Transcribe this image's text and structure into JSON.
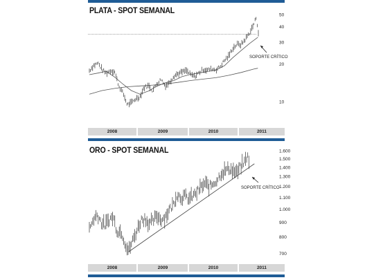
{
  "chart_data": [
    {
      "type": "line",
      "title": "PLATA - SPOT SEMANAL",
      "scale": "log",
      "ylim": [
        7,
        55
      ],
      "yticks": [
        10,
        20,
        30,
        40,
        50
      ],
      "x_categories": [
        "2008",
        "2009",
        "2010",
        "2011"
      ],
      "annotation": "SOPORTE CRÍTICO",
      "reference_level": 35,
      "grid": false,
      "series": [
        {
          "values": [
            [
              2008.0,
              17.8
            ],
            [
              2008.08,
              19.5
            ],
            [
              2008.17,
              20.5
            ],
            [
              2008.25,
              18.2
            ],
            [
              2008.33,
              17.0
            ],
            [
              2008.42,
              17.8
            ],
            [
              2008.5,
              17.5
            ],
            [
              2008.58,
              13.5
            ],
            [
              2008.67,
              11.6
            ],
            [
              2008.75,
              9.5
            ],
            [
              2008.83,
              9.8
            ],
            [
              2008.92,
              10.6
            ],
            [
              2009.0,
              11.0
            ],
            [
              2009.08,
              13.0
            ],
            [
              2009.17,
              13.5
            ],
            [
              2009.25,
              12.3
            ],
            [
              2009.33,
              14.0
            ],
            [
              2009.42,
              15.2
            ],
            [
              2009.5,
              13.4
            ],
            [
              2009.58,
              14.2
            ],
            [
              2009.67,
              16.2
            ],
            [
              2009.75,
              16.8
            ],
            [
              2009.83,
              17.3
            ],
            [
              2009.92,
              17.8
            ],
            [
              2010.0,
              16.5
            ],
            [
              2010.08,
              16.0
            ],
            [
              2010.17,
              17.2
            ],
            [
              2010.25,
              18.2
            ],
            [
              2010.33,
              18.0
            ],
            [
              2010.42,
              18.4
            ],
            [
              2010.5,
              18.1
            ],
            [
              2010.58,
              19.1
            ],
            [
              2010.67,
              21.5
            ],
            [
              2010.75,
              23.2
            ],
            [
              2010.83,
              26.8
            ],
            [
              2010.92,
              29.0
            ],
            [
              2011.0,
              28.8
            ],
            [
              2011.08,
              31.8
            ],
            [
              2011.17,
              36.0
            ],
            [
              2011.25,
              42.0
            ],
            [
              2011.3,
              48.0
            ],
            [
              2011.34,
              36.0
            ]
          ]
        },
        {
          "values": [
            [
              2008.0,
              16.5
            ],
            [
              2008.17,
              17.0
            ],
            [
              2008.33,
              17.6
            ],
            [
              2008.5,
              15.8
            ],
            [
              2008.67,
              13.8
            ],
            [
              2008.83,
              12.3
            ],
            [
              2009.0,
              11.5
            ],
            [
              2009.17,
              12.2
            ],
            [
              2009.33,
              13.3
            ],
            [
              2009.5,
              14.2
            ],
            [
              2009.67,
              14.8
            ],
            [
              2009.83,
              15.9
            ],
            [
              2010.0,
              16.6
            ],
            [
              2010.17,
              17.0
            ],
            [
              2010.33,
              17.5
            ],
            [
              2010.5,
              18.0
            ],
            [
              2010.67,
              19.5
            ],
            [
              2010.83,
              22.5
            ],
            [
              2011.0,
              25.8
            ],
            [
              2011.17,
              29.5
            ],
            [
              2011.33,
              33.0
            ]
          ]
        },
        {
          "values": [
            [
              2008.0,
              11.5
            ],
            [
              2008.25,
              12.3
            ],
            [
              2008.5,
              12.8
            ],
            [
              2008.75,
              13.2
            ],
            [
              2009.0,
              13.4
            ],
            [
              2009.25,
              13.6
            ],
            [
              2009.5,
              13.9
            ],
            [
              2009.75,
              14.3
            ],
            [
              2010.0,
              14.8
            ],
            [
              2010.25,
              15.2
            ],
            [
              2010.5,
              15.6
            ],
            [
              2010.75,
              16.3
            ],
            [
              2011.0,
              17.2
            ],
            [
              2011.25,
              18.3
            ],
            [
              2011.33,
              18.6
            ]
          ]
        }
      ]
    },
    {
      "type": "line",
      "title": "ORO - SPOT SEMANAL",
      "scale": "log",
      "ylim": [
        680,
        1620
      ],
      "yticks": [
        "1.600",
        "1.500",
        "1.400",
        "1.300",
        "1.200",
        "1.100",
        "1.000",
        "900",
        "800",
        "700"
      ],
      "ytick_values": [
        1600,
        1500,
        1400,
        1300,
        1200,
        1100,
        1000,
        900,
        800,
        700
      ],
      "x_categories": [
        "2008",
        "2009",
        "2010",
        "2011"
      ],
      "annotation": "SOPORTE CRÍTICO",
      "trendline": [
        [
          2008.82,
          710
        ],
        [
          2011.33,
          1395
        ]
      ],
      "grid": false,
      "series": [
        {
          "values": [
            [
              2008.0,
              850
            ],
            [
              2008.08,
              920
            ],
            [
              2008.17,
              960
            ],
            [
              2008.25,
              900
            ],
            [
              2008.33,
              880
            ],
            [
              2008.42,
              925
            ],
            [
              2008.5,
              940
            ],
            [
              2008.58,
              840
            ],
            [
              2008.67,
              835
            ],
            [
              2008.75,
              760
            ],
            [
              2008.82,
              715
            ],
            [
              2008.92,
              790
            ],
            [
              2009.0,
              850
            ],
            [
              2009.08,
              920
            ],
            [
              2009.17,
              930
            ],
            [
              2009.25,
              890
            ],
            [
              2009.33,
              910
            ],
            [
              2009.42,
              950
            ],
            [
              2009.5,
              920
            ],
            [
              2009.58,
              940
            ],
            [
              2009.67,
              995
            ],
            [
              2009.75,
              1040
            ],
            [
              2009.83,
              1130
            ],
            [
              2009.92,
              1100
            ],
            [
              2010.0,
              1110
            ],
            [
              2010.08,
              1090
            ],
            [
              2010.17,
              1115
            ],
            [
              2010.25,
              1150
            ],
            [
              2010.33,
              1195
            ],
            [
              2010.42,
              1230
            ],
            [
              2010.5,
              1200
            ],
            [
              2010.58,
              1230
            ],
            [
              2010.67,
              1270
            ],
            [
              2010.75,
              1340
            ],
            [
              2010.83,
              1365
            ],
            [
              2010.92,
              1390
            ],
            [
              2011.0,
              1365
            ],
            [
              2011.08,
              1340
            ],
            [
              2011.17,
              1420
            ],
            [
              2011.25,
              1470
            ],
            [
              2011.29,
              1540
            ],
            [
              2011.33,
              1495
            ]
          ]
        }
      ]
    }
  ],
  "ui": {
    "silver_title": "PLATA - SPOT SEMANAL",
    "gold_title": "ORO - SPOT SEMANAL",
    "silver_annotation": "SOPORTE CRÍTICO",
    "gold_annotation": "SOPORTE CRÍTICO",
    "years": [
      "2008",
      "2009",
      "2010",
      "2011"
    ],
    "colors": {
      "bar": "#1f5c96",
      "axis_band": "#d7d7d7",
      "price": "#333333",
      "reference": "#666666"
    }
  }
}
